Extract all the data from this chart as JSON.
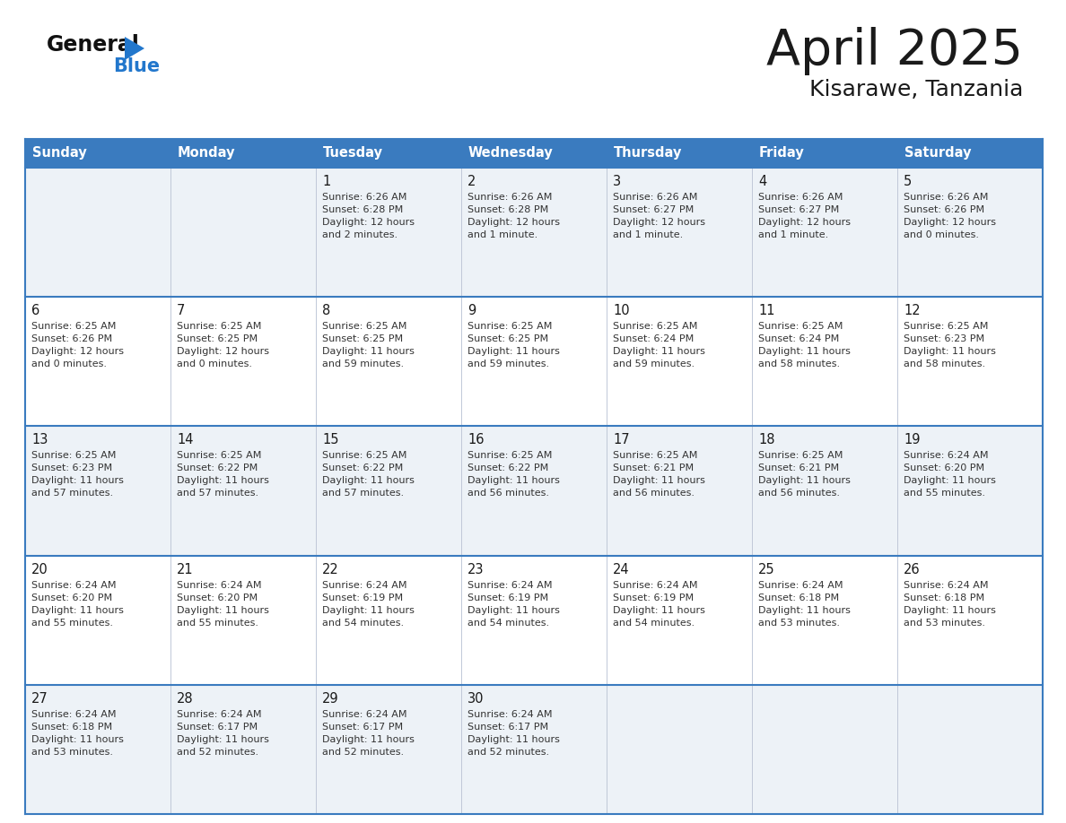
{
  "title": "April 2025",
  "subtitle": "Kisarawe, Tanzania",
  "header_bg": "#3a7bbf",
  "header_text_color": "#ffffff",
  "day_names": [
    "Sunday",
    "Monday",
    "Tuesday",
    "Wednesday",
    "Thursday",
    "Friday",
    "Saturday"
  ],
  "row_bg_light": "#edf2f7",
  "row_bg_white": "#ffffff",
  "border_color": "#3a7bbf",
  "sep_color": "#c0c8d8",
  "title_color": "#1a1a1a",
  "subtitle_color": "#1a1a1a",
  "cell_text_color": "#333333",
  "day_num_color": "#1a1a1a",
  "logo_black": "#111111",
  "logo_blue": "#2277cc",
  "logo_tri": "#2277cc",
  "days": [
    {
      "day": 1,
      "col": 2,
      "row": 0,
      "sunrise": "6:26 AM",
      "sunset": "6:28 PM",
      "daylight": "12 hours\nand 2 minutes."
    },
    {
      "day": 2,
      "col": 3,
      "row": 0,
      "sunrise": "6:26 AM",
      "sunset": "6:28 PM",
      "daylight": "12 hours\nand 1 minute."
    },
    {
      "day": 3,
      "col": 4,
      "row": 0,
      "sunrise": "6:26 AM",
      "sunset": "6:27 PM",
      "daylight": "12 hours\nand 1 minute."
    },
    {
      "day": 4,
      "col": 5,
      "row": 0,
      "sunrise": "6:26 AM",
      "sunset": "6:27 PM",
      "daylight": "12 hours\nand 1 minute."
    },
    {
      "day": 5,
      "col": 6,
      "row": 0,
      "sunrise": "6:26 AM",
      "sunset": "6:26 PM",
      "daylight": "12 hours\nand 0 minutes."
    },
    {
      "day": 6,
      "col": 0,
      "row": 1,
      "sunrise": "6:25 AM",
      "sunset": "6:26 PM",
      "daylight": "12 hours\nand 0 minutes."
    },
    {
      "day": 7,
      "col": 1,
      "row": 1,
      "sunrise": "6:25 AM",
      "sunset": "6:25 PM",
      "daylight": "12 hours\nand 0 minutes."
    },
    {
      "day": 8,
      "col": 2,
      "row": 1,
      "sunrise": "6:25 AM",
      "sunset": "6:25 PM",
      "daylight": "11 hours\nand 59 minutes."
    },
    {
      "day": 9,
      "col": 3,
      "row": 1,
      "sunrise": "6:25 AM",
      "sunset": "6:25 PM",
      "daylight": "11 hours\nand 59 minutes."
    },
    {
      "day": 10,
      "col": 4,
      "row": 1,
      "sunrise": "6:25 AM",
      "sunset": "6:24 PM",
      "daylight": "11 hours\nand 59 minutes."
    },
    {
      "day": 11,
      "col": 5,
      "row": 1,
      "sunrise": "6:25 AM",
      "sunset": "6:24 PM",
      "daylight": "11 hours\nand 58 minutes."
    },
    {
      "day": 12,
      "col": 6,
      "row": 1,
      "sunrise": "6:25 AM",
      "sunset": "6:23 PM",
      "daylight": "11 hours\nand 58 minutes."
    },
    {
      "day": 13,
      "col": 0,
      "row": 2,
      "sunrise": "6:25 AM",
      "sunset": "6:23 PM",
      "daylight": "11 hours\nand 57 minutes."
    },
    {
      "day": 14,
      "col": 1,
      "row": 2,
      "sunrise": "6:25 AM",
      "sunset": "6:22 PM",
      "daylight": "11 hours\nand 57 minutes."
    },
    {
      "day": 15,
      "col": 2,
      "row": 2,
      "sunrise": "6:25 AM",
      "sunset": "6:22 PM",
      "daylight": "11 hours\nand 57 minutes."
    },
    {
      "day": 16,
      "col": 3,
      "row": 2,
      "sunrise": "6:25 AM",
      "sunset": "6:22 PM",
      "daylight": "11 hours\nand 56 minutes."
    },
    {
      "day": 17,
      "col": 4,
      "row": 2,
      "sunrise": "6:25 AM",
      "sunset": "6:21 PM",
      "daylight": "11 hours\nand 56 minutes."
    },
    {
      "day": 18,
      "col": 5,
      "row": 2,
      "sunrise": "6:25 AM",
      "sunset": "6:21 PM",
      "daylight": "11 hours\nand 56 minutes."
    },
    {
      "day": 19,
      "col": 6,
      "row": 2,
      "sunrise": "6:24 AM",
      "sunset": "6:20 PM",
      "daylight": "11 hours\nand 55 minutes."
    },
    {
      "day": 20,
      "col": 0,
      "row": 3,
      "sunrise": "6:24 AM",
      "sunset": "6:20 PM",
      "daylight": "11 hours\nand 55 minutes."
    },
    {
      "day": 21,
      "col": 1,
      "row": 3,
      "sunrise": "6:24 AM",
      "sunset": "6:20 PM",
      "daylight": "11 hours\nand 55 minutes."
    },
    {
      "day": 22,
      "col": 2,
      "row": 3,
      "sunrise": "6:24 AM",
      "sunset": "6:19 PM",
      "daylight": "11 hours\nand 54 minutes."
    },
    {
      "day": 23,
      "col": 3,
      "row": 3,
      "sunrise": "6:24 AM",
      "sunset": "6:19 PM",
      "daylight": "11 hours\nand 54 minutes."
    },
    {
      "day": 24,
      "col": 4,
      "row": 3,
      "sunrise": "6:24 AM",
      "sunset": "6:19 PM",
      "daylight": "11 hours\nand 54 minutes."
    },
    {
      "day": 25,
      "col": 5,
      "row": 3,
      "sunrise": "6:24 AM",
      "sunset": "6:18 PM",
      "daylight": "11 hours\nand 53 minutes."
    },
    {
      "day": 26,
      "col": 6,
      "row": 3,
      "sunrise": "6:24 AM",
      "sunset": "6:18 PM",
      "daylight": "11 hours\nand 53 minutes."
    },
    {
      "day": 27,
      "col": 0,
      "row": 4,
      "sunrise": "6:24 AM",
      "sunset": "6:18 PM",
      "daylight": "11 hours\nand 53 minutes."
    },
    {
      "day": 28,
      "col": 1,
      "row": 4,
      "sunrise": "6:24 AM",
      "sunset": "6:17 PM",
      "daylight": "11 hours\nand 52 minutes."
    },
    {
      "day": 29,
      "col": 2,
      "row": 4,
      "sunrise": "6:24 AM",
      "sunset": "6:17 PM",
      "daylight": "11 hours\nand 52 minutes."
    },
    {
      "day": 30,
      "col": 3,
      "row": 4,
      "sunrise": "6:24 AM",
      "sunset": "6:17 PM",
      "daylight": "11 hours\nand 52 minutes."
    }
  ]
}
